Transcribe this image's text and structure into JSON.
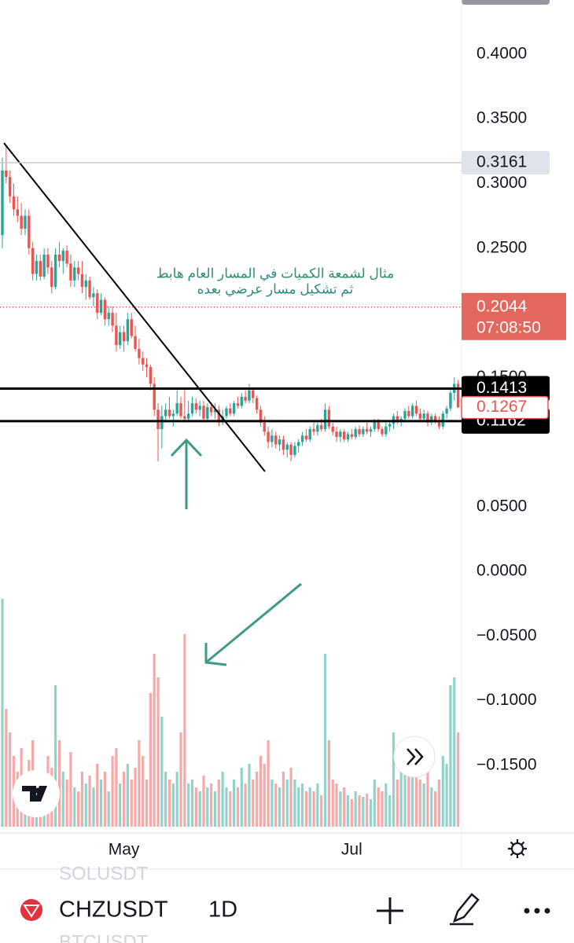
{
  "chart_data": {
    "type": "candlestick",
    "symbol": "CHZUSDT",
    "interval": "1D",
    "watchlist": [
      "SOLUSDT",
      "BTCUSDT"
    ],
    "annotation": [
      "مثال لشمعة الكميات في المسار العام هابط",
      "ثم تشكيل مسار عرضي بعده"
    ],
    "up_color": "#26a69a",
    "down_color": "#ef5350",
    "ylim": [
      -0.2024,
      0.4419
    ],
    "yticks": [
      {
        "value": 0.4,
        "label": "0.4000"
      },
      {
        "value": 0.35,
        "label": "0.3500"
      },
      {
        "value": 0.3,
        "label": "0.3000"
      },
      {
        "value": 0.25,
        "label": "0.2500"
      },
      {
        "value": 0.15,
        "label": "0.1500"
      },
      {
        "value": 0.05,
        "label": "0.0500"
      },
      {
        "value": 0,
        "label": "0.0000"
      },
      {
        "value": -0.05,
        "label": "−0.0500"
      },
      {
        "value": -0.1,
        "label": "−0.1000"
      },
      {
        "value": -0.15,
        "label": "−0.1500"
      }
    ],
    "xticks": [
      {
        "value": 32,
        "label": "May"
      },
      {
        "value": 92,
        "label": "Jul"
      }
    ],
    "high_line": 0.3161,
    "last_price": 0.2044,
    "countdown": "07:08:50",
    "close_price": 0.1267,
    "levels": [
      0.1413,
      0.1162
    ],
    "candles": [
      {
        "o": 0.26,
        "h": 0.32,
        "l": 0.25,
        "c": 0.31,
        "v": 290
      },
      {
        "o": 0.31,
        "h": 0.33,
        "l": 0.3,
        "c": 0.305,
        "v": 150
      },
      {
        "o": 0.305,
        "h": 0.31,
        "l": 0.285,
        "c": 0.29,
        "v": 120
      },
      {
        "o": 0.29,
        "h": 0.3,
        "l": 0.275,
        "c": 0.28,
        "v": 90
      },
      {
        "o": 0.28,
        "h": 0.29,
        "l": 0.27,
        "c": 0.275,
        "v": 70
      },
      {
        "o": 0.275,
        "h": 0.285,
        "l": 0.26,
        "c": 0.265,
        "v": 100
      },
      {
        "o": 0.265,
        "h": 0.28,
        "l": 0.26,
        "c": 0.275,
        "v": 60
      },
      {
        "o": 0.275,
        "h": 0.28,
        "l": 0.245,
        "c": 0.25,
        "v": 85
      },
      {
        "o": 0.25,
        "h": 0.255,
        "l": 0.225,
        "c": 0.23,
        "v": 110
      },
      {
        "o": 0.23,
        "h": 0.245,
        "l": 0.225,
        "c": 0.24,
        "v": 70
      },
      {
        "o": 0.24,
        "h": 0.245,
        "l": 0.225,
        "c": 0.228,
        "v": 55
      },
      {
        "o": 0.228,
        "h": 0.25,
        "l": 0.226,
        "c": 0.245,
        "v": 60
      },
      {
        "o": 0.245,
        "h": 0.25,
        "l": 0.23,
        "c": 0.235,
        "v": 90
      },
      {
        "o": 0.235,
        "h": 0.24,
        "l": 0.215,
        "c": 0.22,
        "v": 75
      },
      {
        "o": 0.22,
        "h": 0.25,
        "l": 0.218,
        "c": 0.245,
        "v": 180
      },
      {
        "o": 0.245,
        "h": 0.255,
        "l": 0.235,
        "c": 0.24,
        "v": 110
      },
      {
        "o": 0.24,
        "h": 0.25,
        "l": 0.23,
        "c": 0.248,
        "v": 70
      },
      {
        "o": 0.248,
        "h": 0.252,
        "l": 0.235,
        "c": 0.238,
        "v": 60
      },
      {
        "o": 0.238,
        "h": 0.245,
        "l": 0.22,
        "c": 0.225,
        "v": 95
      },
      {
        "o": 0.225,
        "h": 0.24,
        "l": 0.22,
        "c": 0.235,
        "v": 50
      },
      {
        "o": 0.235,
        "h": 0.24,
        "l": 0.225,
        "c": 0.23,
        "v": 45
      },
      {
        "o": 0.23,
        "h": 0.24,
        "l": 0.215,
        "c": 0.22,
        "v": 70
      },
      {
        "o": 0.22,
        "h": 0.23,
        "l": 0.21,
        "c": 0.225,
        "v": 55
      },
      {
        "o": 0.225,
        "h": 0.228,
        "l": 0.21,
        "c": 0.212,
        "v": 65
      },
      {
        "o": 0.212,
        "h": 0.22,
        "l": 0.205,
        "c": 0.215,
        "v": 50
      },
      {
        "o": 0.215,
        "h": 0.218,
        "l": 0.195,
        "c": 0.2,
        "v": 80
      },
      {
        "o": 0.2,
        "h": 0.215,
        "l": 0.198,
        "c": 0.21,
        "v": 60
      },
      {
        "o": 0.21,
        "h": 0.212,
        "l": 0.19,
        "c": 0.195,
        "v": 70
      },
      {
        "o": 0.195,
        "h": 0.205,
        "l": 0.19,
        "c": 0.2,
        "v": 45
      },
      {
        "o": 0.2,
        "h": 0.205,
        "l": 0.185,
        "c": 0.19,
        "v": 90
      },
      {
        "o": 0.19,
        "h": 0.2,
        "l": 0.17,
        "c": 0.175,
        "v": 100
      },
      {
        "o": 0.175,
        "h": 0.19,
        "l": 0.172,
        "c": 0.185,
        "v": 55
      },
      {
        "o": 0.185,
        "h": 0.19,
        "l": 0.17,
        "c": 0.178,
        "v": 70
      },
      {
        "o": 0.178,
        "h": 0.2,
        "l": 0.175,
        "c": 0.195,
        "v": 80
      },
      {
        "o": 0.195,
        "h": 0.2,
        "l": 0.18,
        "c": 0.182,
        "v": 60
      },
      {
        "o": 0.182,
        "h": 0.19,
        "l": 0.17,
        "c": 0.172,
        "v": 75
      },
      {
        "o": 0.172,
        "h": 0.18,
        "l": 0.16,
        "c": 0.165,
        "v": 110
      },
      {
        "o": 0.165,
        "h": 0.17,
        "l": 0.155,
        "c": 0.16,
        "v": 90
      },
      {
        "o": 0.16,
        "h": 0.165,
        "l": 0.15,
        "c": 0.158,
        "v": 60
      },
      {
        "o": 0.158,
        "h": 0.16,
        "l": 0.14,
        "c": 0.145,
        "v": 170
      },
      {
        "o": 0.145,
        "h": 0.15,
        "l": 0.12,
        "c": 0.125,
        "v": 220
      },
      {
        "o": 0.125,
        "h": 0.13,
        "l": 0.085,
        "c": 0.11,
        "v": 190
      },
      {
        "o": 0.11,
        "h": 0.128,
        "l": 0.095,
        "c": 0.12,
        "v": 140
      },
      {
        "o": 0.12,
        "h": 0.13,
        "l": 0.115,
        "c": 0.125,
        "v": 70
      },
      {
        "o": 0.125,
        "h": 0.135,
        "l": 0.118,
        "c": 0.12,
        "v": 60
      },
      {
        "o": 0.12,
        "h": 0.125,
        "l": 0.112,
        "c": 0.122,
        "v": 55
      },
      {
        "o": 0.122,
        "h": 0.14,
        "l": 0.12,
        "c": 0.13,
        "v": 70
      },
      {
        "o": 0.13,
        "h": 0.135,
        "l": 0.118,
        "c": 0.12,
        "v": 120
      },
      {
        "o": 0.12,
        "h": 0.14,
        "l": 0.115,
        "c": 0.118,
        "v": 245
      },
      {
        "o": 0.118,
        "h": 0.132,
        "l": 0.116,
        "c": 0.122,
        "v": 55
      },
      {
        "o": 0.122,
        "h": 0.135,
        "l": 0.12,
        "c": 0.13,
        "v": 60
      },
      {
        "o": 0.13,
        "h": 0.134,
        "l": 0.122,
        "c": 0.125,
        "v": 50
      },
      {
        "o": 0.125,
        "h": 0.132,
        "l": 0.12,
        "c": 0.128,
        "v": 45
      },
      {
        "o": 0.128,
        "h": 0.132,
        "l": 0.115,
        "c": 0.118,
        "v": 65
      },
      {
        "o": 0.118,
        "h": 0.13,
        "l": 0.116,
        "c": 0.127,
        "v": 50
      },
      {
        "o": 0.127,
        "h": 0.13,
        "l": 0.12,
        "c": 0.123,
        "v": 55
      },
      {
        "o": 0.123,
        "h": 0.13,
        "l": 0.118,
        "c": 0.125,
        "v": 45
      },
      {
        "o": 0.125,
        "h": 0.128,
        "l": 0.112,
        "c": 0.115,
        "v": 60
      },
      {
        "o": 0.115,
        "h": 0.125,
        "l": 0.113,
        "c": 0.12,
        "v": 70
      },
      {
        "o": 0.12,
        "h": 0.128,
        "l": 0.118,
        "c": 0.126,
        "v": 50
      },
      {
        "o": 0.126,
        "h": 0.13,
        "l": 0.12,
        "c": 0.122,
        "v": 45
      },
      {
        "o": 0.122,
        "h": 0.132,
        "l": 0.12,
        "c": 0.13,
        "v": 60
      },
      {
        "o": 0.13,
        "h": 0.135,
        "l": 0.126,
        "c": 0.128,
        "v": 50
      },
      {
        "o": 0.128,
        "h": 0.138,
        "l": 0.126,
        "c": 0.135,
        "v": 75
      },
      {
        "o": 0.135,
        "h": 0.14,
        "l": 0.13,
        "c": 0.132,
        "v": 55
      },
      {
        "o": 0.132,
        "h": 0.145,
        "l": 0.13,
        "c": 0.14,
        "v": 80
      },
      {
        "o": 0.14,
        "h": 0.142,
        "l": 0.13,
        "c": 0.134,
        "v": 60
      },
      {
        "o": 0.134,
        "h": 0.136,
        "l": 0.122,
        "c": 0.125,
        "v": 70
      },
      {
        "o": 0.125,
        "h": 0.128,
        "l": 0.112,
        "c": 0.115,
        "v": 90
      },
      {
        "o": 0.115,
        "h": 0.12,
        "l": 0.105,
        "c": 0.108,
        "v": 80
      },
      {
        "o": 0.108,
        "h": 0.112,
        "l": 0.095,
        "c": 0.1,
        "v": 110
      },
      {
        "o": 0.1,
        "h": 0.11,
        "l": 0.096,
        "c": 0.105,
        "v": 60
      },
      {
        "o": 0.105,
        "h": 0.108,
        "l": 0.095,
        "c": 0.098,
        "v": 55
      },
      {
        "o": 0.098,
        "h": 0.105,
        "l": 0.093,
        "c": 0.102,
        "v": 50
      },
      {
        "o": 0.102,
        "h": 0.105,
        "l": 0.09,
        "c": 0.094,
        "v": 70
      },
      {
        "o": 0.094,
        "h": 0.1,
        "l": 0.088,
        "c": 0.098,
        "v": 60
      },
      {
        "o": 0.098,
        "h": 0.1,
        "l": 0.085,
        "c": 0.09,
        "v": 75
      },
      {
        "o": 0.09,
        "h": 0.1,
        "l": 0.088,
        "c": 0.097,
        "v": 60
      },
      {
        "o": 0.097,
        "h": 0.102,
        "l": 0.092,
        "c": 0.1,
        "v": 50
      },
      {
        "o": 0.1,
        "h": 0.108,
        "l": 0.097,
        "c": 0.105,
        "v": 55
      },
      {
        "o": 0.105,
        "h": 0.11,
        "l": 0.1,
        "c": 0.102,
        "v": 45
      },
      {
        "o": 0.102,
        "h": 0.112,
        "l": 0.1,
        "c": 0.11,
        "v": 50
      },
      {
        "o": 0.11,
        "h": 0.115,
        "l": 0.105,
        "c": 0.108,
        "v": 45
      },
      {
        "o": 0.108,
        "h": 0.115,
        "l": 0.105,
        "c": 0.113,
        "v": 55
      },
      {
        "o": 0.113,
        "h": 0.118,
        "l": 0.108,
        "c": 0.11,
        "v": 40
      },
      {
        "o": 0.11,
        "h": 0.13,
        "l": 0.108,
        "c": 0.125,
        "v": 220
      },
      {
        "o": 0.125,
        "h": 0.128,
        "l": 0.11,
        "c": 0.112,
        "v": 110
      },
      {
        "o": 0.112,
        "h": 0.115,
        "l": 0.105,
        "c": 0.108,
        "v": 60
      },
      {
        "o": 0.108,
        "h": 0.112,
        "l": 0.1,
        "c": 0.104,
        "v": 55
      },
      {
        "o": 0.104,
        "h": 0.11,
        "l": 0.1,
        "c": 0.108,
        "v": 45
      },
      {
        "o": 0.108,
        "h": 0.11,
        "l": 0.1,
        "c": 0.102,
        "v": 50
      },
      {
        "o": 0.102,
        "h": 0.108,
        "l": 0.1,
        "c": 0.106,
        "v": 40
      },
      {
        "o": 0.106,
        "h": 0.11,
        "l": 0.102,
        "c": 0.104,
        "v": 35
      },
      {
        "o": 0.104,
        "h": 0.112,
        "l": 0.102,
        "c": 0.11,
        "v": 45
      },
      {
        "o": 0.11,
        "h": 0.113,
        "l": 0.104,
        "c": 0.106,
        "v": 40
      },
      {
        "o": 0.106,
        "h": 0.112,
        "l": 0.104,
        "c": 0.11,
        "v": 38
      },
      {
        "o": 0.11,
        "h": 0.115,
        "l": 0.106,
        "c": 0.108,
        "v": 42
      },
      {
        "o": 0.108,
        "h": 0.112,
        "l": 0.104,
        "c": 0.11,
        "v": 35
      },
      {
        "o": 0.11,
        "h": 0.118,
        "l": 0.108,
        "c": 0.116,
        "v": 60
      },
      {
        "o": 0.116,
        "h": 0.118,
        "l": 0.108,
        "c": 0.11,
        "v": 50
      },
      {
        "o": 0.11,
        "h": 0.112,
        "l": 0.104,
        "c": 0.106,
        "v": 45
      },
      {
        "o": 0.106,
        "h": 0.115,
        "l": 0.104,
        "c": 0.112,
        "v": 55
      },
      {
        "o": 0.112,
        "h": 0.116,
        "l": 0.108,
        "c": 0.114,
        "v": 40
      },
      {
        "o": 0.114,
        "h": 0.122,
        "l": 0.11,
        "c": 0.12,
        "v": 120
      },
      {
        "o": 0.12,
        "h": 0.124,
        "l": 0.114,
        "c": 0.116,
        "v": 60
      },
      {
        "o": 0.116,
        "h": 0.12,
        "l": 0.112,
        "c": 0.118,
        "v": 70
      },
      {
        "o": 0.118,
        "h": 0.126,
        "l": 0.115,
        "c": 0.124,
        "v": 80
      },
      {
        "o": 0.124,
        "h": 0.128,
        "l": 0.118,
        "c": 0.12,
        "v": 65
      },
      {
        "o": 0.12,
        "h": 0.13,
        "l": 0.118,
        "c": 0.128,
        "v": 85
      },
      {
        "o": 0.128,
        "h": 0.132,
        "l": 0.12,
        "c": 0.122,
        "v": 75
      },
      {
        "o": 0.122,
        "h": 0.126,
        "l": 0.115,
        "c": 0.118,
        "v": 60
      },
      {
        "o": 0.118,
        "h": 0.125,
        "l": 0.116,
        "c": 0.122,
        "v": 55
      },
      {
        "o": 0.122,
        "h": 0.124,
        "l": 0.112,
        "c": 0.115,
        "v": 70
      },
      {
        "o": 0.115,
        "h": 0.122,
        "l": 0.113,
        "c": 0.12,
        "v": 50
      },
      {
        "o": 0.12,
        "h": 0.122,
        "l": 0.114,
        "c": 0.116,
        "v": 45
      },
      {
        "o": 0.116,
        "h": 0.12,
        "l": 0.11,
        "c": 0.112,
        "v": 60
      },
      {
        "o": 0.112,
        "h": 0.124,
        "l": 0.11,
        "c": 0.122,
        "v": 90
      },
      {
        "o": 0.122,
        "h": 0.128,
        "l": 0.118,
        "c": 0.126,
        "v": 80
      },
      {
        "o": 0.126,
        "h": 0.14,
        "l": 0.124,
        "c": 0.138,
        "v": 180
      },
      {
        "o": 0.138,
        "h": 0.15,
        "l": 0.132,
        "c": 0.145,
        "v": 190
      },
      {
        "o": 0.145,
        "h": 0.148,
        "l": 0.13,
        "c": 0.1267,
        "v": 120
      }
    ]
  }
}
